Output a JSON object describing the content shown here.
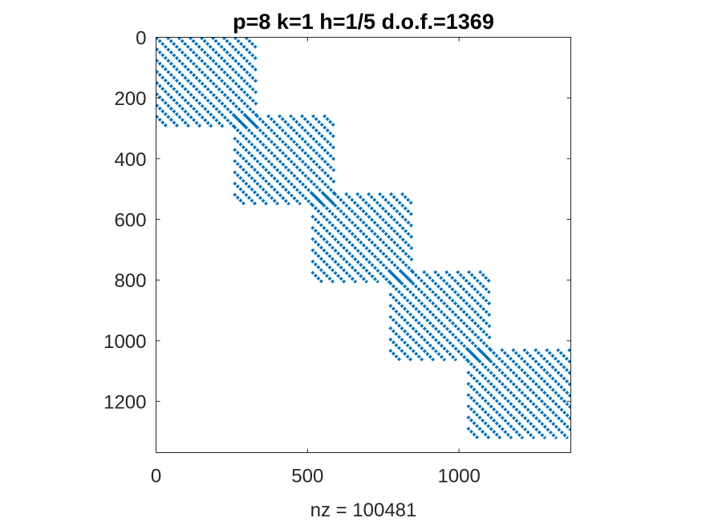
{
  "chart_data": {
    "type": "heatmap",
    "subtype": "sparsity-pattern",
    "title": "p=8 k=1 h=1/5 d.o.f.=1369",
    "xlabel": "nz = 100481",
    "ylabel": "",
    "n": 1369,
    "xlim": [
      0,
      1369
    ],
    "ylim": [
      0,
      1369
    ],
    "y_axis_reversed": true,
    "xticks": [
      0,
      500,
      1000
    ],
    "yticks": [
      0,
      200,
      400,
      600,
      800,
      1000,
      1200
    ],
    "grid": false,
    "legend": "none",
    "marker_color": "#0072BD",
    "blocks": [
      {
        "rows": [
          0,
          297
        ],
        "cols": [
          0,
          333
        ]
      },
      {
        "rows": [
          257,
          551
        ],
        "cols": [
          257,
          590
        ]
      },
      {
        "rows": [
          514,
          808
        ],
        "cols": [
          514,
          847
        ]
      },
      {
        "rows": [
          771,
          1065
        ],
        "cols": [
          771,
          1104
        ]
      },
      {
        "rows": [
          1028,
          1322
        ],
        "cols": [
          1028,
          1369
        ]
      }
    ],
    "diagonal_band_spacing": 37,
    "nz": 100481
  }
}
